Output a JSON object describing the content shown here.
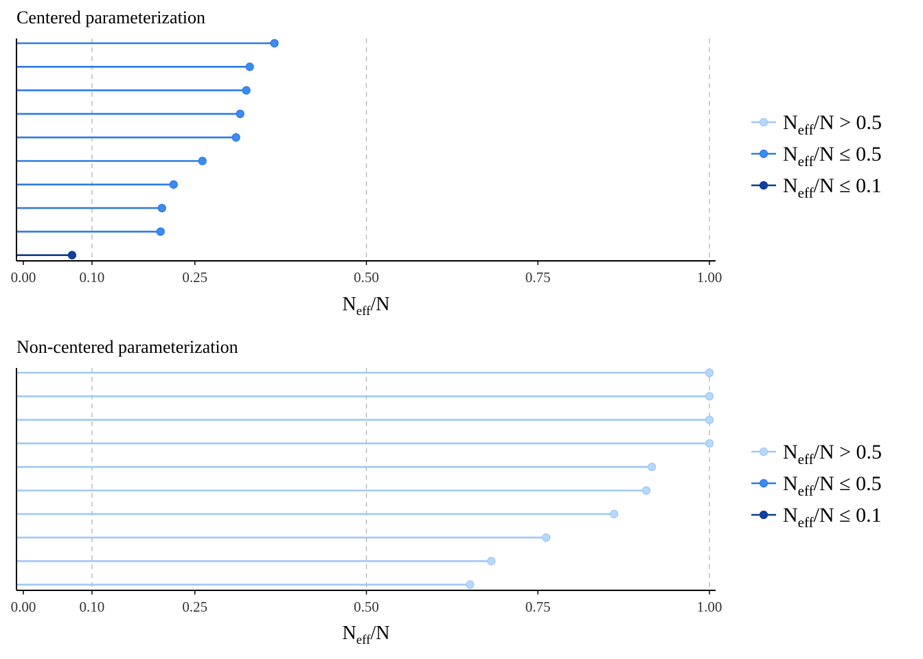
{
  "colors": {
    "high": "#9ec8f7",
    "high_point": "#b9d8fa",
    "mid": "#2b7be5",
    "mid_point": "#3d8bf0",
    "low": "#0c3c8c",
    "low_point": "#1040a0",
    "grid": "#b3b3b3",
    "axis": "#000000"
  },
  "legend": {
    "items": [
      {
        "key": "high",
        "main": "N",
        "sub": "eff",
        "rest": "/N > 0.5"
      },
      {
        "key": "mid",
        "main": "N",
        "sub": "eff",
        "rest": "/N ≤ 0.5"
      },
      {
        "key": "low",
        "main": "N",
        "sub": "eff",
        "rest": "/N ≤ 0.1"
      }
    ]
  },
  "chart_data": [
    {
      "type": "lollipop",
      "title": "Centered parameterization",
      "xlabel_main": "N",
      "xlabel_sub": "eff",
      "xlabel_rest": "/N",
      "xlim": [
        0,
        1
      ],
      "ticks": [
        0,
        0.1,
        0.25,
        0.5,
        0.75,
        1.0
      ],
      "tick_labels": [
        "0.00",
        "0.10",
        "0.25",
        "0.50",
        "0.75",
        "1.00"
      ],
      "gridlines": [
        0.1,
        0.5,
        1.0
      ],
      "values": [
        0.366,
        0.33,
        0.325,
        0.316,
        0.31,
        0.261,
        0.219,
        0.202,
        0.2,
        0.071
      ],
      "categories_by_value": [
        "mid",
        "mid",
        "mid",
        "mid",
        "mid",
        "mid",
        "mid",
        "mid",
        "mid",
        "low"
      ]
    },
    {
      "type": "lollipop",
      "title": "Non-centered parameterization",
      "xlabel_main": "N",
      "xlabel_sub": "eff",
      "xlabel_rest": "/N",
      "xlim": [
        0,
        1
      ],
      "ticks": [
        0,
        0.1,
        0.25,
        0.5,
        0.75,
        1.0
      ],
      "tick_labels": [
        "0.00",
        "0.10",
        "0.25",
        "0.50",
        "0.75",
        "1.00"
      ],
      "gridlines": [
        0.1,
        0.5,
        1.0
      ],
      "values": [
        1.0,
        1.0,
        1.0,
        1.0,
        0.916,
        0.908,
        0.861,
        0.762,
        0.682,
        0.651
      ],
      "categories_by_value": [
        "high",
        "high",
        "high",
        "high",
        "high",
        "high",
        "high",
        "high",
        "high",
        "high"
      ]
    }
  ]
}
